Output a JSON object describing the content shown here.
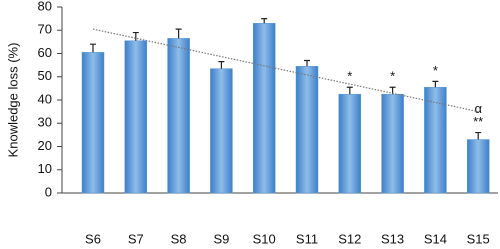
{
  "chart_data": {
    "type": "bar",
    "y_label": "Knowledge loss (%)",
    "categories": [
      "S6",
      "S7",
      "S8",
      "S9",
      "S10",
      "S11",
      "S12",
      "S13",
      "S14",
      "S15"
    ],
    "values": [
      60.5,
      65.5,
      66.5,
      53.5,
      73,
      54.5,
      42.5,
      42.5,
      45.5,
      23
    ],
    "errors": [
      3.5,
      3.5,
      4,
      3,
      2,
      2.5,
      3,
      3,
      2.5,
      3
    ],
    "markers": [
      [],
      [],
      [],
      [],
      [],
      [],
      [
        "*"
      ],
      [
        "*"
      ],
      [
        "*"
      ],
      [
        "α",
        "**"
      ]
    ],
    "trendline": [
      70.5,
      35
    ],
    "color": "#5b9bd5",
    "ylim": [
      0,
      80
    ],
    "yticks": [
      0,
      10,
      20,
      30,
      40,
      50,
      60,
      70,
      80
    ]
  }
}
